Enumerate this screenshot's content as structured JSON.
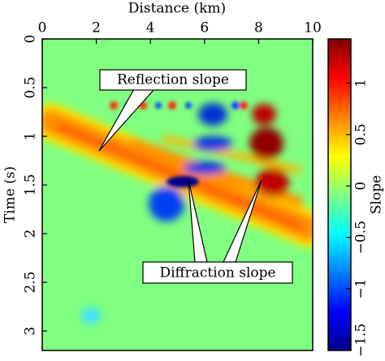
{
  "chart_data": {
    "type": "heatmap",
    "xlabel": "Distance (km)",
    "ylabel": "Time (s)",
    "xlim": [
      0,
      10
    ],
    "xticks": [
      0,
      2,
      4,
      6,
      8,
      10
    ],
    "ylim": [
      0,
      3.2
    ],
    "yticks": [
      0,
      0.5,
      1,
      1.5,
      2,
      2.5,
      3
    ],
    "colorbar": {
      "label": "Slope",
      "lim": [
        -1.6,
        1.43
      ],
      "ticks": [
        {
          "value": -1.5,
          "label": "−1.5"
        },
        {
          "value": -1,
          "label": "−1"
        },
        {
          "value": -0.5,
          "label": "−0.5"
        },
        0,
        0.5,
        1
      ],
      "colormap": [
        "#00008f",
        "#0000ff",
        "#0080ff",
        "#00ffff",
        "#80ff80",
        "#ffff00",
        "#ff8000",
        "#ff0000",
        "#800000"
      ]
    },
    "annotations": [
      "Reflection slope",
      "Diffraction slope"
    ]
  }
}
